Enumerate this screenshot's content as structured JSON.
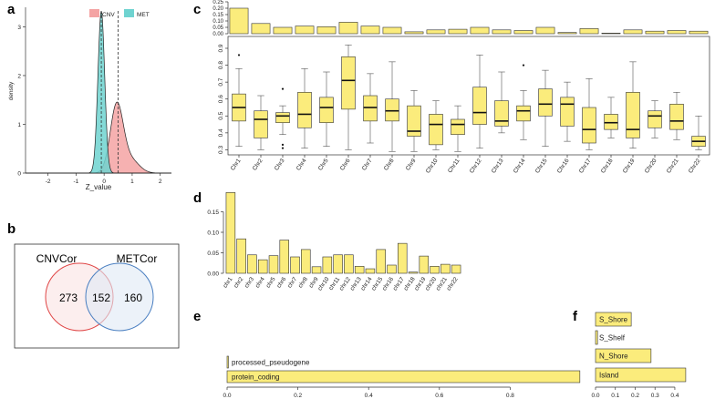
{
  "panel_labels": {
    "a": "a",
    "b": "b",
    "c": "c",
    "d": "d",
    "e": "e",
    "f": "f"
  },
  "colors": {
    "cnv": "#f4a3a3",
    "met": "#6fd3d0",
    "bar": "#fbec7c",
    "venn_cnv": "#e04646",
    "venn_met": "#4a7fc1"
  },
  "chart_data": [
    {
      "id": "a",
      "type": "area",
      "title": "",
      "xlabel": "Z_value",
      "ylabel": "density",
      "xlim": [
        -2.8,
        2.4
      ],
      "ylim": [
        0,
        3.4
      ],
      "xticks": [
        "-2",
        "-1",
        "0",
        "1",
        "2"
      ],
      "yticks": [
        "0",
        "1",
        "2",
        "3"
      ],
      "legend": [
        "CNV",
        "MET"
      ],
      "series": [
        {
          "name": "CNV",
          "mean": 0.5,
          "components": [
            {
              "mu": 0.45,
              "sd": 0.23,
              "w": 0.8
            },
            {
              "mu": 0.95,
              "sd": 0.3,
              "w": 0.2
            }
          ]
        },
        {
          "name": "MET",
          "mean": -0.1,
          "components": [
            {
              "mu": -0.1,
              "sd": 0.12,
              "w": 1.0
            }
          ]
        }
      ]
    },
    {
      "id": "b",
      "type": "venn",
      "sets": [
        "CNVCor",
        "METCor"
      ],
      "counts": {
        "left_only": "273",
        "both": "152",
        "right_only": "160"
      }
    },
    {
      "id": "c_top",
      "type": "bar",
      "categories": [
        "Chr1",
        "Chr2",
        "Chr3",
        "Chr4",
        "Chr5",
        "Chr6",
        "Chr7",
        "Chr8",
        "Chr9",
        "Chr10",
        "Chr11",
        "Chr12",
        "Chr13",
        "Chr14",
        "Chr15",
        "Chr16",
        "Chr17",
        "Chr18",
        "Chr19",
        "Chr20",
        "Chr21",
        "Chr22"
      ],
      "values": [
        0.2,
        0.08,
        0.05,
        0.06,
        0.055,
        0.09,
        0.06,
        0.05,
        0.015,
        0.03,
        0.035,
        0.05,
        0.03,
        0.025,
        0.05,
        0.01,
        0.04,
        0.005,
        0.03,
        0.02,
        0.025,
        0.02
      ],
      "ylim": [
        0,
        0.25
      ],
      "yticks": [
        "0.00",
        "0.05",
        "0.10",
        "0.15",
        "0.20",
        "0.25"
      ]
    },
    {
      "id": "c_box",
      "type": "box",
      "categories": [
        "Chr1",
        "Chr2",
        "Chr3",
        "Chr4",
        "Chr5",
        "Chr6",
        "Chr7",
        "Chr8",
        "Chr9",
        "Chr10",
        "Chr11",
        "Chr12",
        "Chr13",
        "Chr14",
        "Chr15",
        "Chr16",
        "Chr17",
        "Chr18",
        "Chr19",
        "Chr20",
        "Chr21",
        "Chr22"
      ],
      "ylim": [
        0.27,
        0.97
      ],
      "yticks": [
        "0.3",
        "0.4",
        "0.5",
        "0.6",
        "0.7",
        "0.8",
        "0.9"
      ],
      "boxes": [
        {
          "min": 0.32,
          "q1": 0.47,
          "med": 0.55,
          "q3": 0.63,
          "max": 0.78,
          "out": [
            0.86
          ]
        },
        {
          "min": 0.3,
          "q1": 0.37,
          "med": 0.48,
          "q3": 0.53,
          "max": 0.62,
          "out": []
        },
        {
          "min": 0.39,
          "q1": 0.46,
          "med": 0.5,
          "q3": 0.52,
          "max": 0.56,
          "out": [
            0.33,
            0.31,
            0.66
          ]
        },
        {
          "min": 0.31,
          "q1": 0.43,
          "med": 0.51,
          "q3": 0.64,
          "max": 0.78,
          "out": []
        },
        {
          "min": 0.32,
          "q1": 0.46,
          "med": 0.55,
          "q3": 0.61,
          "max": 0.76,
          "out": []
        },
        {
          "min": 0.3,
          "q1": 0.54,
          "med": 0.71,
          "q3": 0.85,
          "max": 0.92,
          "out": []
        },
        {
          "min": 0.34,
          "q1": 0.47,
          "med": 0.55,
          "q3": 0.62,
          "max": 0.75,
          "out": []
        },
        {
          "min": 0.29,
          "q1": 0.47,
          "med": 0.53,
          "q3": 0.6,
          "max": 0.82,
          "out": []
        },
        {
          "min": 0.29,
          "q1": 0.38,
          "med": 0.41,
          "q3": 0.56,
          "max": 0.65,
          "out": []
        },
        {
          "min": 0.3,
          "q1": 0.33,
          "med": 0.45,
          "q3": 0.51,
          "max": 0.59,
          "out": []
        },
        {
          "min": 0.29,
          "q1": 0.39,
          "med": 0.45,
          "q3": 0.48,
          "max": 0.56,
          "out": []
        },
        {
          "min": 0.31,
          "q1": 0.45,
          "med": 0.52,
          "q3": 0.67,
          "max": 0.86,
          "out": []
        },
        {
          "min": 0.4,
          "q1": 0.44,
          "med": 0.47,
          "q3": 0.59,
          "max": 0.76,
          "out": []
        },
        {
          "min": 0.36,
          "q1": 0.47,
          "med": 0.53,
          "q3": 0.56,
          "max": 0.65,
          "out": [
            0.8
          ]
        },
        {
          "min": 0.32,
          "q1": 0.5,
          "med": 0.57,
          "q3": 0.66,
          "max": 0.77,
          "out": []
        },
        {
          "min": 0.35,
          "q1": 0.44,
          "med": 0.57,
          "q3": 0.61,
          "max": 0.7,
          "out": []
        },
        {
          "min": 0.3,
          "q1": 0.34,
          "med": 0.42,
          "q3": 0.55,
          "max": 0.72,
          "out": []
        },
        {
          "min": 0.37,
          "q1": 0.42,
          "med": 0.46,
          "q3": 0.51,
          "max": 0.61,
          "out": []
        },
        {
          "min": 0.31,
          "q1": 0.37,
          "med": 0.42,
          "q3": 0.64,
          "max": 0.82,
          "out": []
        },
        {
          "min": 0.37,
          "q1": 0.43,
          "med": 0.5,
          "q3": 0.53,
          "max": 0.59,
          "out": []
        },
        {
          "min": 0.36,
          "q1": 0.42,
          "med": 0.47,
          "q3": 0.57,
          "max": 0.64,
          "out": []
        },
        {
          "min": 0.3,
          "q1": 0.32,
          "med": 0.35,
          "q3": 0.38,
          "max": 0.5,
          "out": []
        }
      ]
    },
    {
      "id": "d",
      "type": "bar",
      "categories": [
        "chr1",
        "chr2",
        "chr3",
        "chr4",
        "chr5",
        "chr6",
        "chr7",
        "chr8",
        "chr9",
        "chr10",
        "chr11",
        "chr12",
        "chr13",
        "chr14",
        "chr15",
        "chr16",
        "chr17",
        "chr18",
        "chr19",
        "chr20",
        "chr21",
        "chr22"
      ],
      "values": [
        0.197,
        0.084,
        0.045,
        0.033,
        0.043,
        0.081,
        0.04,
        0.058,
        0.016,
        0.04,
        0.045,
        0.045,
        0.017,
        0.011,
        0.058,
        0.02,
        0.073,
        0.003,
        0.042,
        0.017,
        0.022,
        0.02
      ],
      "ylim": [
        0,
        0.2
      ],
      "yticks": [
        "0.00",
        "0.05",
        "0.10",
        "0.15"
      ]
    },
    {
      "id": "e",
      "type": "bar",
      "orientation": "horizontal",
      "categories": [
        "processed_pseudogene",
        "protein_coding"
      ],
      "values": [
        0.003,
        0.997
      ],
      "xlim": [
        0,
        1.0
      ],
      "xticks": [
        "0.0",
        "0.2",
        "0.4",
        "0.6",
        "0.8"
      ]
    },
    {
      "id": "f",
      "type": "bar",
      "orientation": "horizontal",
      "categories": [
        "S_Shore",
        "S_Shelf",
        "N_Shore",
        "Island"
      ],
      "values": [
        0.18,
        0.01,
        0.28,
        0.455
      ],
      "xlim": [
        0,
        0.46
      ],
      "xticks": [
        "0.0",
        "0.1",
        "0.2",
        "0.3",
        "0.4"
      ]
    }
  ]
}
